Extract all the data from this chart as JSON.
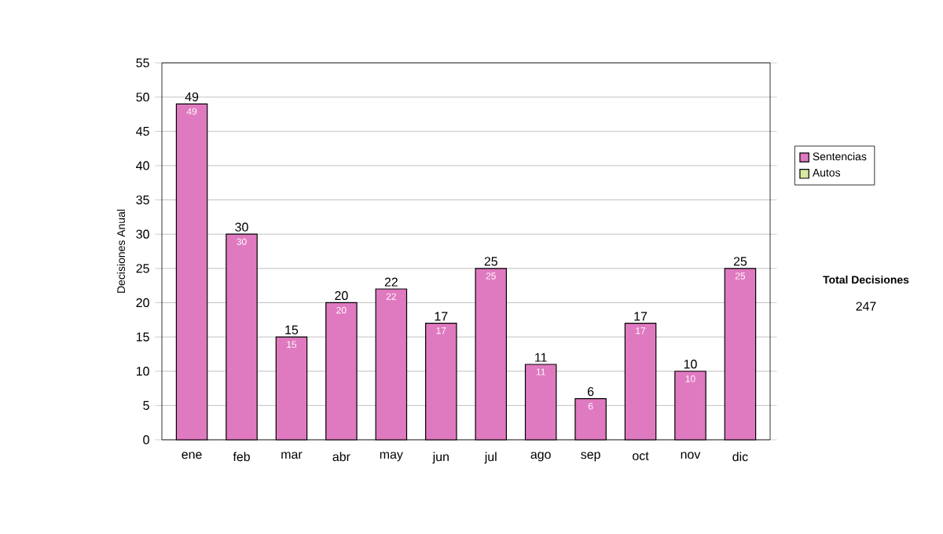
{
  "chart_data": {
    "type": "bar",
    "ylabel": "Decisiones Anual",
    "categories": [
      "ene",
      "feb",
      "mar",
      "abr",
      "may",
      "jun",
      "jul",
      "ago",
      "sep",
      "oct",
      "nov",
      "dic"
    ],
    "series": [
      {
        "name": "Sentencias",
        "color": "#e07ac0",
        "values": [
          49,
          30,
          15,
          20,
          22,
          17,
          25,
          11,
          6,
          17,
          10,
          25
        ],
        "value_labels": [
          "49",
          "30",
          "15",
          "20",
          "22",
          "17",
          "25",
          "11",
          "6",
          "17",
          "10",
          "25"
        ]
      },
      {
        "name": "Autos",
        "color": "#d8e8a0",
        "values": [
          0,
          0,
          0,
          0,
          0,
          0,
          0,
          0,
          0,
          0,
          0,
          0
        ]
      }
    ],
    "stacked": true,
    "totals": [
      "49",
      "30",
      "15",
      "20",
      "22",
      "17",
      "25",
      "11",
      "6",
      "17",
      "10",
      "25"
    ],
    "ylim": [
      0,
      55
    ],
    "yticks": [
      0,
      5,
      10,
      15,
      20,
      25,
      30,
      35,
      40,
      45,
      50,
      55
    ],
    "grid": "y",
    "legend": "right",
    "annotations": [
      "Total Decisiones",
      "247"
    ]
  }
}
